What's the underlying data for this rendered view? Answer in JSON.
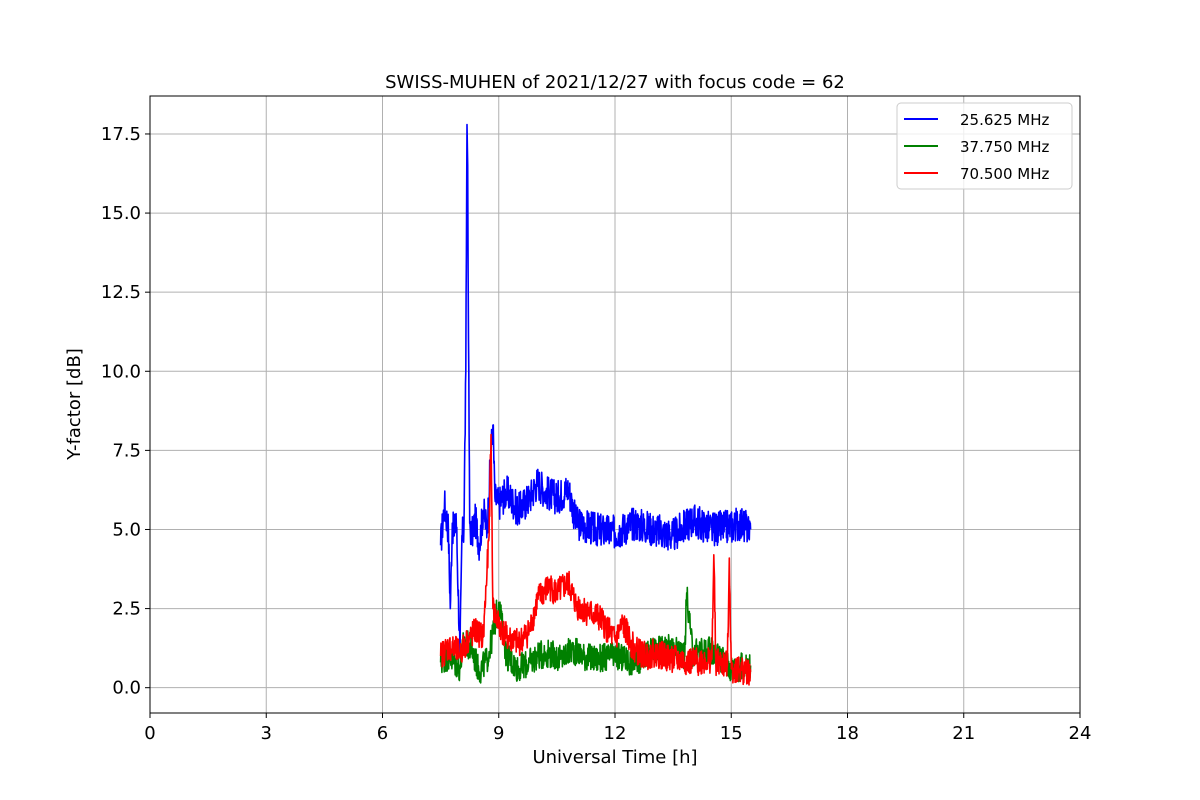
{
  "chart_data": {
    "type": "line",
    "title": "SWISS-MUHEN of 2021/12/27 with focus code = 62",
    "xlabel": "Universal Time [h]",
    "ylabel": "Y-factor [dB]",
    "xlim": [
      0,
      24
    ],
    "ylim": [
      -0.8,
      18.7
    ],
    "xticks": [
      0,
      3,
      6,
      9,
      12,
      15,
      18,
      21,
      24
    ],
    "xtick_labels": [
      "0",
      "3",
      "6",
      "9",
      "12",
      "15",
      "18",
      "21",
      "24"
    ],
    "yticks": [
      0.0,
      2.5,
      5.0,
      7.5,
      10.0,
      12.5,
      15.0,
      17.5
    ],
    "ytick_labels": [
      "0.0",
      "2.5",
      "5.0",
      "7.5",
      "10.0",
      "12.5",
      "15.0",
      "17.5"
    ],
    "grid": true,
    "legend_position": "top-right",
    "series": [
      {
        "name": "25.625 MHz",
        "color": "#0000ff",
        "x": [
          7.5,
          7.6,
          7.7,
          7.75,
          7.8,
          7.85,
          7.9,
          8.0,
          8.05,
          8.1,
          8.15,
          8.18,
          8.2,
          8.22,
          8.25,
          8.3,
          8.4,
          8.5,
          8.6,
          8.7,
          8.8,
          8.85,
          8.9,
          9.0,
          9.2,
          9.5,
          9.8,
          10.0,
          10.2,
          10.5,
          10.8,
          11.0,
          11.5,
          12.0,
          12.5,
          13.0,
          13.5,
          14.0,
          14.5,
          15.0,
          15.2,
          15.5
        ],
        "y": [
          4.5,
          5.8,
          5.0,
          2.5,
          5.2,
          4.8,
          5.5,
          1.0,
          4.8,
          5.0,
          10.0,
          17.8,
          16.5,
          11.0,
          5.2,
          4.8,
          5.3,
          4.5,
          5.6,
          5.0,
          7.5,
          8.3,
          6.0,
          5.8,
          6.2,
          5.6,
          6.0,
          6.5,
          6.2,
          6.0,
          6.3,
          5.2,
          5.0,
          4.9,
          5.2,
          5.0,
          4.8,
          5.3,
          5.0,
          5.1,
          5.2,
          5.0
        ]
      },
      {
        "name": "37.750 MHz",
        "color": "#008000",
        "x": [
          7.5,
          7.7,
          8.0,
          8.1,
          8.3,
          8.5,
          8.7,
          8.8,
          9.0,
          9.2,
          9.5,
          9.8,
          10.0,
          10.3,
          10.6,
          10.9,
          11.2,
          11.5,
          12.0,
          12.5,
          13.0,
          13.5,
          13.8,
          13.85,
          14.0,
          14.5,
          15.0,
          15.5
        ],
        "y": [
          0.8,
          1.0,
          0.6,
          1.5,
          1.2,
          0.5,
          0.9,
          1.4,
          2.7,
          1.0,
          0.6,
          0.8,
          1.0,
          1.1,
          0.9,
          1.2,
          1.0,
          0.9,
          1.0,
          0.8,
          1.2,
          1.3,
          1.0,
          3.0,
          1.1,
          1.2,
          0.6,
          0.7
        ]
      },
      {
        "name": "70.500 MHz",
        "color": "#ff0000",
        "x": [
          7.5,
          7.7,
          8.0,
          8.2,
          8.4,
          8.6,
          8.75,
          8.8,
          8.85,
          9.0,
          9.2,
          9.5,
          9.8,
          10.0,
          10.3,
          10.5,
          10.8,
          11.0,
          11.3,
          11.6,
          12.0,
          12.2,
          12.5,
          12.8,
          13.0,
          13.5,
          14.0,
          14.5,
          14.55,
          14.6,
          14.9,
          14.95,
          15.0,
          15.5
        ],
        "y": [
          1.0,
          1.3,
          1.1,
          1.5,
          1.8,
          1.6,
          4.8,
          8.0,
          2.5,
          2.0,
          1.6,
          1.4,
          1.8,
          2.8,
          3.2,
          3.0,
          3.3,
          2.6,
          2.4,
          2.2,
          1.5,
          2.0,
          1.2,
          1.0,
          1.1,
          0.9,
          0.8,
          0.9,
          4.2,
          0.8,
          0.7,
          4.1,
          0.6,
          0.5
        ]
      }
    ]
  }
}
